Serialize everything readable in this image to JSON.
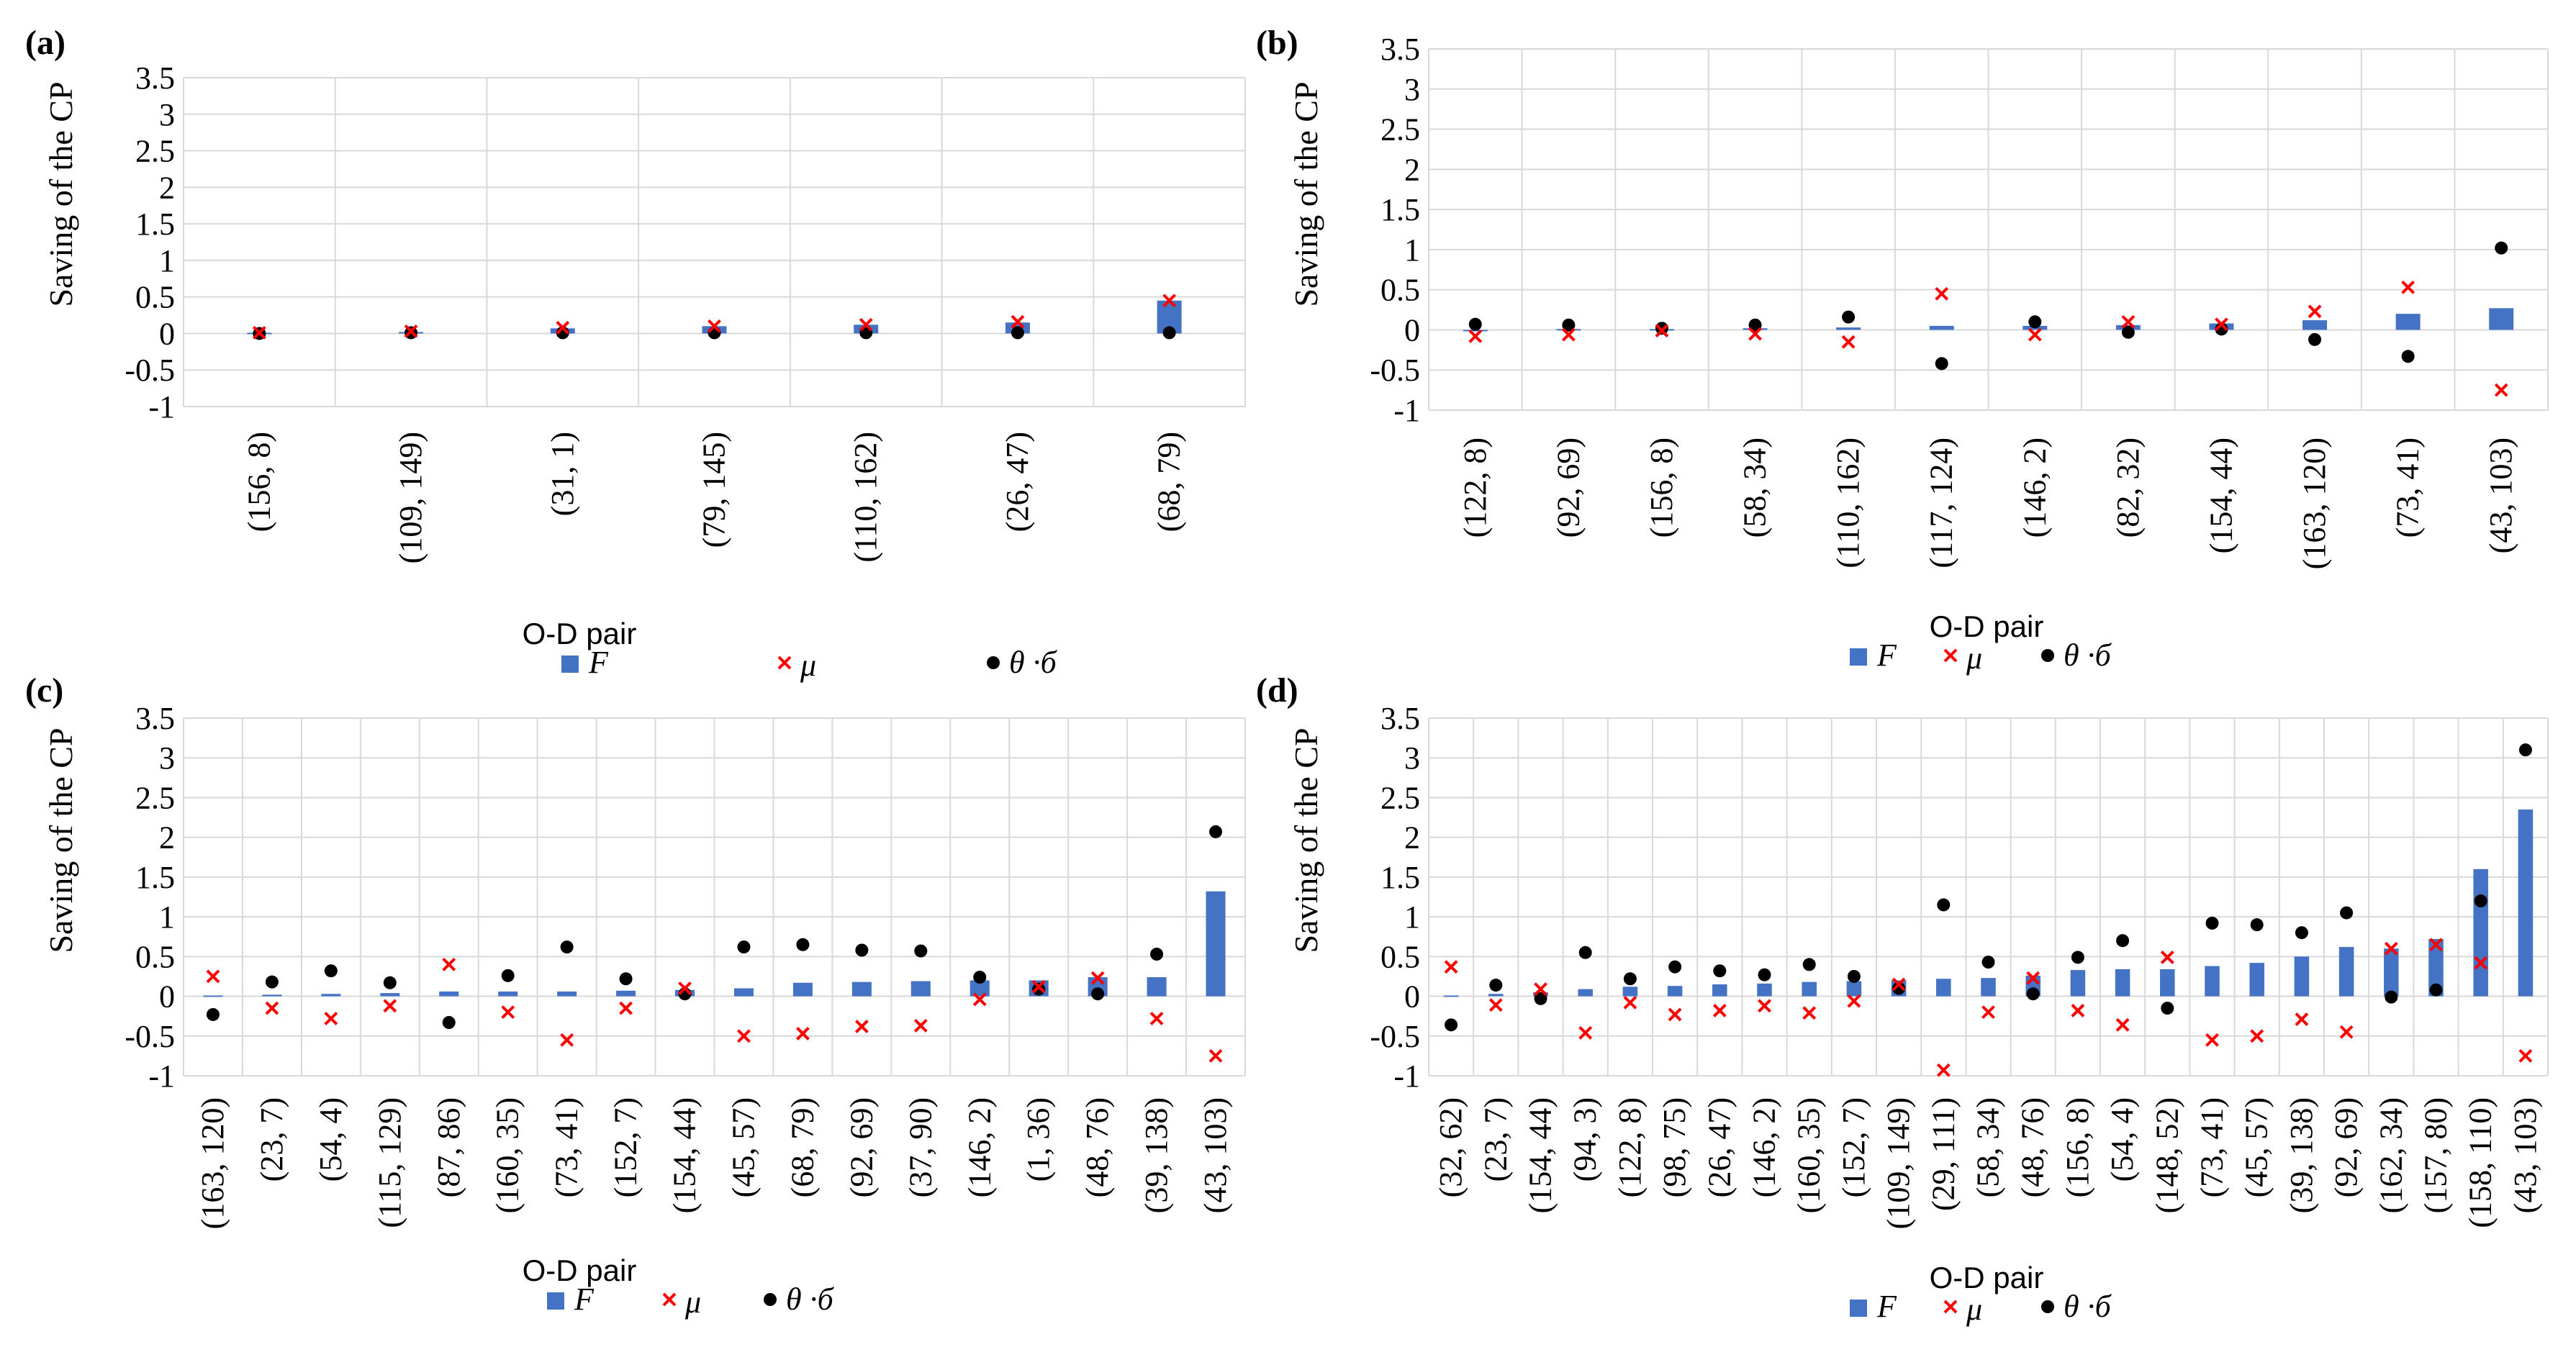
{
  "colors": {
    "bar": "#4472C4",
    "mu": "#FF0000",
    "theta": "#000000",
    "grid": "#D9D9D9"
  },
  "legend": {
    "f": "F",
    "mu": "μ",
    "theta": "θ ·б"
  },
  "chart_data": [
    {
      "type": "bar",
      "panel_label": "(a)",
      "title": "",
      "ylabel": "Saving of the CP",
      "xlabel": "O-D pair",
      "ylim": [
        -1,
        3.5
      ],
      "yticks": [
        "3.5",
        "3",
        "2.5",
        "2",
        "1.5",
        "1",
        "0.5",
        "0",
        "-0.5",
        "-1"
      ],
      "categories": [
        "(156, 8)",
        "(109, 149)",
        "(31, 1)",
        "(79, 145)",
        "(110, 162)",
        "(26, 47)",
        "(68, 79)"
      ],
      "series": [
        {
          "name": "F",
          "kind": "bar",
          "values": [
            0.01,
            0.02,
            0.07,
            0.1,
            0.12,
            0.15,
            0.45
          ]
        },
        {
          "name": "μ",
          "kind": "marker-x",
          "values": [
            0.01,
            0.03,
            0.08,
            0.1,
            0.12,
            0.16,
            0.45
          ]
        },
        {
          "name": "θ ·б",
          "kind": "marker-dot",
          "values": [
            0.0,
            0.01,
            0.01,
            0.01,
            0.01,
            0.01,
            0.01
          ]
        }
      ]
    },
    {
      "type": "bar",
      "panel_label": "(b)",
      "title": "",
      "ylabel": "Saving of the CP",
      "xlabel": "O-D pair",
      "ylim": [
        -1,
        3.5
      ],
      "yticks": [
        "3.5",
        "3",
        "2.5",
        "2",
        "1.5",
        "1",
        "0.5",
        "0",
        "-0.5",
        "-1"
      ],
      "categories": [
        "(122, 8)",
        "(92, 69)",
        "(156, 8)",
        "(58, 34)",
        "(110, 162)",
        "(117, 124)",
        "(146, 2)",
        "(82, 32)",
        "(154, 44)",
        "(163, 120)",
        "(73, 41)",
        "(43, 103)"
      ],
      "series": [
        {
          "name": "F",
          "kind": "bar",
          "values": [
            0.0,
            0.01,
            0.01,
            0.02,
            0.03,
            0.05,
            0.05,
            0.06,
            0.08,
            0.12,
            0.2,
            0.27
          ]
        },
        {
          "name": "μ",
          "kind": "marker-x",
          "values": [
            -0.08,
            -0.06,
            -0.01,
            -0.05,
            -0.15,
            0.45,
            -0.06,
            0.1,
            0.07,
            0.23,
            0.53,
            -0.75
          ]
        },
        {
          "name": "θ ·б",
          "kind": "marker-dot",
          "values": [
            0.07,
            0.06,
            0.02,
            0.06,
            0.16,
            -0.42,
            0.1,
            -0.03,
            0.01,
            -0.12,
            -0.33,
            1.02
          ]
        }
      ]
    },
    {
      "type": "bar",
      "panel_label": "(c)",
      "title": "",
      "ylabel": "Saving of the CP",
      "xlabel": "O-D pair",
      "ylim": [
        -1,
        3.5
      ],
      "yticks": [
        "3.5",
        "3",
        "2.5",
        "2",
        "1.5",
        "1",
        "0.5",
        "0",
        "-0.5",
        "-1"
      ],
      "categories": [
        "(163, 120)",
        "(23, 7)",
        "(54, 4)",
        "(115, 129)",
        "(87, 86)",
        "(160, 35)",
        "(73, 41)",
        "(152, 7)",
        "(154, 44)",
        "(45, 57)",
        "(68, 79)",
        "(92, 69)",
        "(37, 90)",
        "(146, 2)",
        "(1, 36)",
        "(48, 76)",
        "(39, 138)",
        "(43, 103)"
      ],
      "series": [
        {
          "name": "F",
          "kind": "bar",
          "values": [
            0.01,
            0.02,
            0.03,
            0.04,
            0.06,
            0.06,
            0.06,
            0.07,
            0.08,
            0.1,
            0.17,
            0.18,
            0.19,
            0.2,
            0.2,
            0.24,
            0.24,
            1.32
          ]
        },
        {
          "name": "μ",
          "kind": "marker-x",
          "values": [
            0.25,
            -0.15,
            -0.28,
            -0.12,
            0.4,
            -0.2,
            -0.55,
            -0.15,
            0.1,
            -0.5,
            -0.47,
            -0.38,
            -0.37,
            -0.04,
            0.12,
            0.23,
            -0.28,
            -0.75
          ]
        },
        {
          "name": "θ ·б",
          "kind": "marker-dot",
          "values": [
            -0.23,
            0.18,
            0.32,
            0.17,
            -0.33,
            0.26,
            0.62,
            0.22,
            0.03,
            0.62,
            0.65,
            0.58,
            0.57,
            0.24,
            0.09,
            0.03,
            0.53,
            2.07
          ]
        }
      ]
    },
    {
      "type": "bar",
      "panel_label": "(d)",
      "title": "",
      "ylabel": "Saving of the CP",
      "xlabel": "O-D pair",
      "ylim": [
        -1,
        3.5
      ],
      "yticks": [
        "3.5",
        "3",
        "2.5",
        "2",
        "1.5",
        "1",
        "0.5",
        "0",
        "-0.5",
        "-1"
      ],
      "categories": [
        "(32, 62)",
        "(23, 7)",
        "(154, 44)",
        "(94, 3)",
        "(122, 8)",
        "(98, 75)",
        "(26, 47)",
        "(146, 2)",
        "(160, 35)",
        "(152, 7)",
        "(109, 149)",
        "(29, 111)",
        "(58, 34)",
        "(48, 76)",
        "(156, 8)",
        "(54, 4)",
        "(148, 52)",
        "(73, 41)",
        "(45, 57)",
        "(39, 138)",
        "(92, 69)",
        "(162, 34)",
        "(157, 80)",
        "(158, 110)",
        "(43, 103)"
      ],
      "series": [
        {
          "name": "F",
          "kind": "bar",
          "values": [
            0.01,
            0.03,
            0.05,
            0.09,
            0.12,
            0.13,
            0.15,
            0.16,
            0.18,
            0.19,
            0.2,
            0.22,
            0.23,
            0.26,
            0.33,
            0.34,
            0.34,
            0.38,
            0.42,
            0.5,
            0.62,
            0.6,
            0.72,
            1.6,
            2.35
          ]
        },
        {
          "name": "μ",
          "kind": "marker-x",
          "values": [
            0.37,
            -0.11,
            0.09,
            -0.46,
            -0.08,
            -0.23,
            -0.18,
            -0.12,
            -0.21,
            -0.06,
            0.15,
            -0.93,
            -0.2,
            0.23,
            -0.18,
            -0.36,
            0.49,
            -0.55,
            -0.5,
            -0.29,
            -0.45,
            0.6,
            0.65,
            0.42,
            -0.75
          ]
        },
        {
          "name": "θ ·б",
          "kind": "marker-dot",
          "values": [
            -0.36,
            0.14,
            -0.03,
            0.55,
            0.22,
            0.37,
            0.32,
            0.27,
            0.4,
            0.25,
            0.1,
            1.15,
            0.43,
            0.03,
            0.49,
            0.7,
            -0.15,
            0.92,
            0.9,
            0.8,
            1.05,
            -0.01,
            0.08,
            1.2,
            3.1
          ]
        }
      ]
    }
  ]
}
